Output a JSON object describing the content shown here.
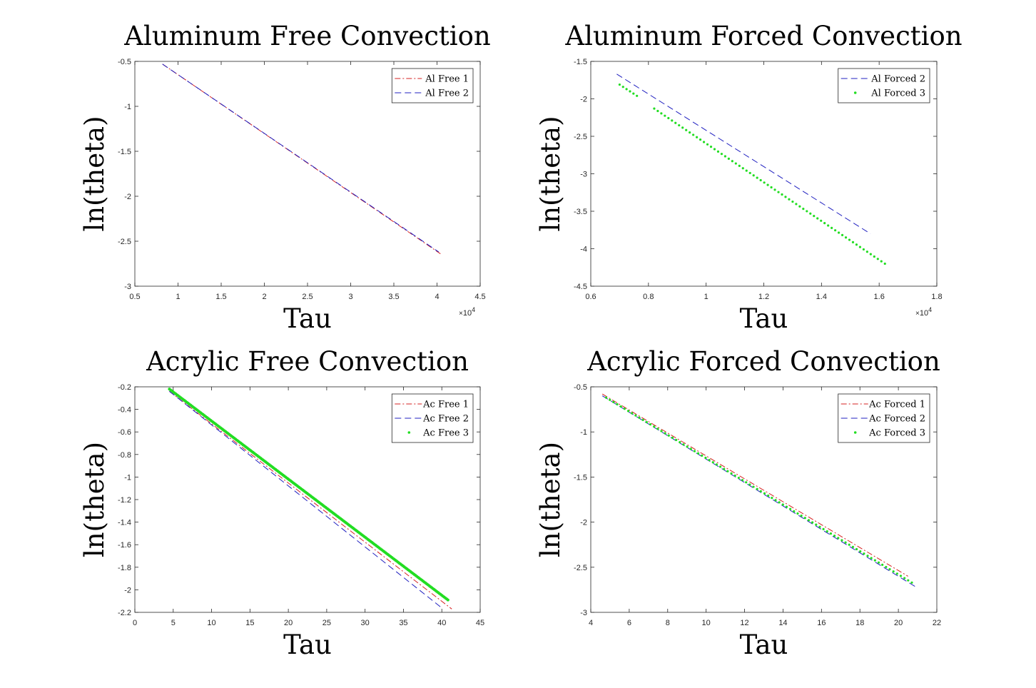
{
  "chart_data": [
    {
      "type": "line",
      "title": "Aluminum Free Convection",
      "xlabel": "Tau",
      "ylabel": "ln(theta)",
      "xlim": [
        0.5,
        4.5
      ],
      "ylim": [
        -3,
        -0.5
      ],
      "xticks": [
        "0.5",
        "1",
        "1.5",
        "2",
        "2.5",
        "3",
        "3.5",
        "4",
        "4.5"
      ],
      "yticks": [
        "-0.5",
        "-1",
        "-1.5",
        "-2",
        "-2.5",
        "-3"
      ],
      "x_exponent": "10",
      "x_exponent_power": "4",
      "legend_position": "top-right",
      "series": [
        {
          "name": "Al Free 1",
          "style": "dashdot",
          "color": "#d62020",
          "x": [
            0.82,
            4.04
          ],
          "y": [
            -0.53,
            -2.64
          ]
        },
        {
          "name": "Al Free 2",
          "style": "dashed",
          "color": "#2020c0",
          "x": [
            0.82,
            4.02
          ],
          "y": [
            -0.53,
            -2.62
          ]
        }
      ]
    },
    {
      "type": "line",
      "title": "Aluminum Forced Convection",
      "xlabel": "Tau",
      "ylabel": "ln(theta)",
      "xlim": [
        0.6,
        1.8
      ],
      "ylim": [
        -4.5,
        -1.5
      ],
      "xticks": [
        "0.6",
        "0.8",
        "1",
        "1.2",
        "1.4",
        "1.6",
        "1.8"
      ],
      "yticks": [
        "-1.5",
        "-2",
        "-2.5",
        "-3",
        "-3.5",
        "-4",
        "-4.5"
      ],
      "x_exponent": "10",
      "x_exponent_power": "4",
      "legend_position": "top-right",
      "series": [
        {
          "name": "Al Forced 2",
          "style": "dashed",
          "color": "#2020c0",
          "x": [
            0.69,
            1.57
          ],
          "y": [
            -1.67,
            -3.8
          ]
        },
        {
          "name": "Al Forced 3",
          "style": "dotted",
          "color": "#22dd22",
          "x": [
            0.7,
            0.76,
            0.82,
            1.62
          ],
          "y": [
            -1.81,
            -1.96,
            -2.13,
            -4.2
          ],
          "gap_after_index": 1
        }
      ]
    },
    {
      "type": "line",
      "title": "Acrylic Free Convection",
      "xlabel": "Tau",
      "ylabel": "ln(theta)",
      "xlim": [
        0,
        45
      ],
      "ylim": [
        -2.2,
        -0.2
      ],
      "xticks": [
        "0",
        "5",
        "10",
        "15",
        "20",
        "25",
        "30",
        "35",
        "40",
        "45"
      ],
      "yticks": [
        "-0.2",
        "-0.4",
        "-0.6",
        "-0.8",
        "-1",
        "-1.2",
        "-1.4",
        "-1.6",
        "-1.8",
        "-2",
        "-2.2"
      ],
      "legend_position": "top-right",
      "series": [
        {
          "name": "Ac Free 1",
          "style": "dashdot",
          "color": "#d62020",
          "x": [
            4.5,
            41.3
          ],
          "y": [
            -0.24,
            -2.17
          ]
        },
        {
          "name": "Ac Free 2",
          "style": "dashed",
          "color": "#2020c0",
          "x": [
            4.5,
            39.8
          ],
          "y": [
            -0.24,
            -2.15
          ]
        },
        {
          "name": "Ac Free 3",
          "style": "dotted-thick",
          "color": "#22dd22",
          "x": [
            4.5,
            40.8
          ],
          "y": [
            -0.22,
            -2.09
          ]
        }
      ]
    },
    {
      "type": "line",
      "title": "Acrylic Forced Convection",
      "xlabel": "Tau",
      "ylabel": "ln(theta)",
      "xlim": [
        4,
        22
      ],
      "ylim": [
        -3,
        -0.5
      ],
      "xticks": [
        "4",
        "6",
        "8",
        "10",
        "12",
        "14",
        "16",
        "18",
        "20",
        "22"
      ],
      "yticks": [
        "-0.5",
        "-1",
        "-1.5",
        "-2",
        "-2.5",
        "-3"
      ],
      "legend_position": "top-right",
      "series": [
        {
          "name": "Ac Forced 1",
          "style": "dashdot",
          "color": "#d62020",
          "x": [
            4.6,
            20.5
          ],
          "y": [
            -0.58,
            -2.6
          ]
        },
        {
          "name": "Ac Forced 2",
          "style": "dashed",
          "color": "#2020c0",
          "x": [
            4.6,
            21.0
          ],
          "y": [
            -0.6,
            -2.73
          ]
        },
        {
          "name": "Ac Forced 3",
          "style": "dotted",
          "color": "#22dd22",
          "x": [
            4.8,
            20.7
          ],
          "y": [
            -0.62,
            -2.67
          ]
        }
      ]
    }
  ]
}
